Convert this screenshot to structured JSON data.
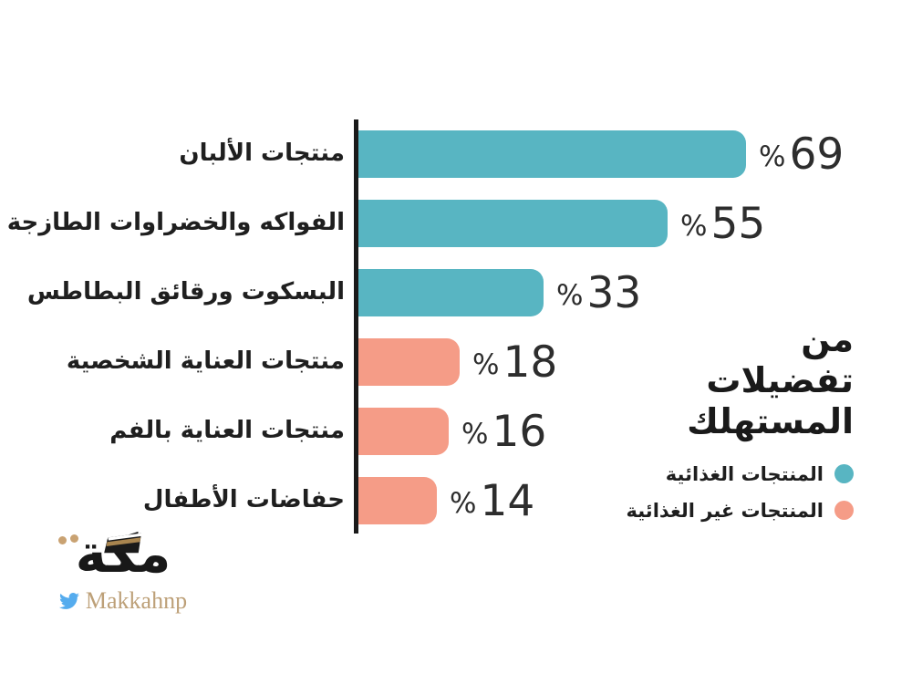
{
  "chart_data": {
    "type": "bar",
    "orientation": "horizontal",
    "title": "من تفضيلات المستهلك",
    "categories": [
      "منتجات الألبان",
      "الفواكه والخضراوات الطازجة",
      "البسكوت ورقائق البطاطس",
      "منتجات العناية الشخصية",
      "منتجات العناية بالفم",
      "حفاضات الأطفال"
    ],
    "values": [
      69,
      55,
      33,
      18,
      16,
      14
    ],
    "value_prefix": "%",
    "value_labels": [
      "%69",
      "%55",
      "%33",
      "%18",
      "%16",
      "%14"
    ],
    "groups": [
      "food",
      "food",
      "food",
      "nonfood",
      "nonfood",
      "nonfood"
    ],
    "colors": {
      "food": "#58b5c2",
      "nonfood": "#f59c87"
    },
    "xlim": [
      0,
      69
    ],
    "grid": false,
    "legend_position": "right",
    "axis_color": "#1a1a1a"
  },
  "title": {
    "lines": [
      "من",
      "تفضيلات",
      "المستهلك"
    ]
  },
  "legend": {
    "items": [
      {
        "label": "المنتجات الغذائية",
        "key": "food",
        "color": "#58b5c2"
      },
      {
        "label": "المنتجات غير الغذائية",
        "key": "nonfood",
        "color": "#f59c87"
      }
    ]
  },
  "logo": {
    "arabic": "مكة",
    "handle": "Makkahnp",
    "handle_color": "#bda078",
    "twitter_blue": "#55acee",
    "gold": "#c9a272",
    "black": "#181818"
  }
}
